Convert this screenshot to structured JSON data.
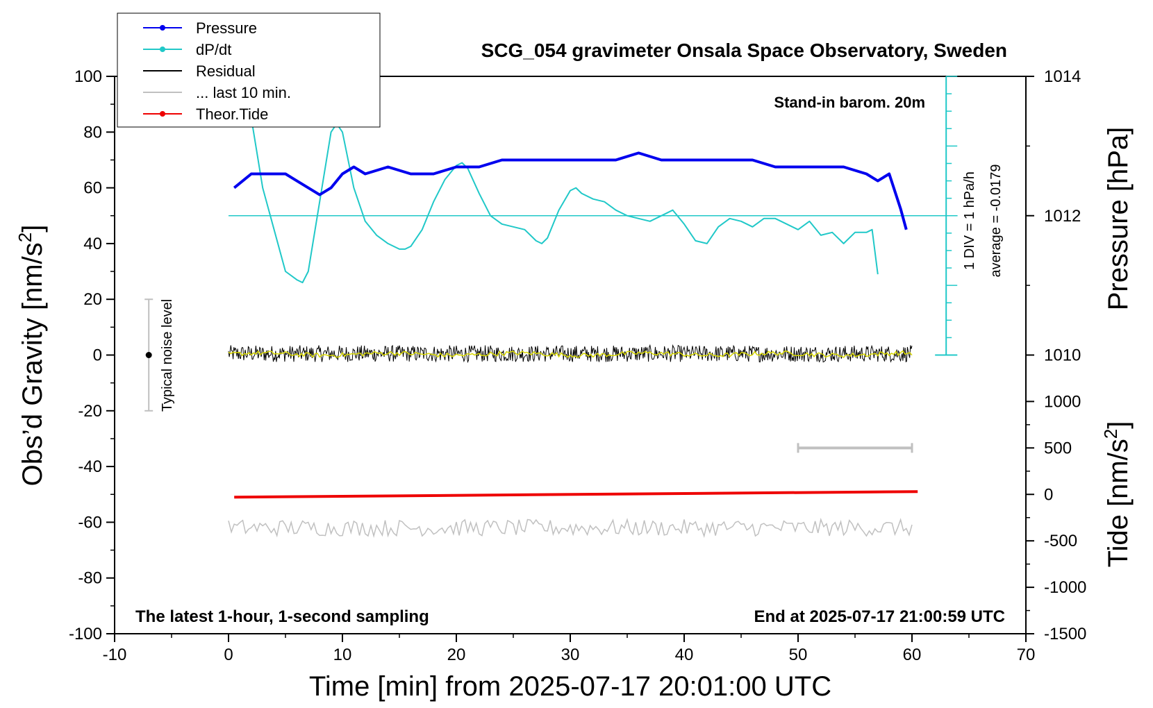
{
  "chart_data": {
    "type": "line",
    "title": "SCG_054 gravimeter Onsala Space Observatory, Sweden",
    "xlabel": "Time [min] from 2025-07-17 20:01:00 UTC",
    "ylabel_left": "Obs’d Gravity [nm/s",
    "ylabel_left_sup": "2",
    "ylabel_left_close": "]",
    "ylabel_right_pressure": "Pressure [hPa]",
    "ylabel_right_tide": "Tide [nm/s",
    "ylabel_right_tide_sup": "2",
    "ylabel_right_tide_close": "]",
    "xlim": [
      -10,
      70
    ],
    "ylim_left": [
      -100,
      100
    ],
    "x_ticks": [
      -10,
      0,
      10,
      20,
      30,
      40,
      50,
      60,
      70
    ],
    "x_tick_labels": [
      "-10",
      "0",
      "10",
      "20",
      "30",
      "40",
      "50",
      "60",
      "70"
    ],
    "y_left_ticks": [
      100,
      80,
      60,
      40,
      20,
      0,
      -20,
      -40,
      -60,
      -80,
      -100
    ],
    "y_left_tick_labels": [
      "100",
      "80",
      "60",
      "40",
      "20",
      "0",
      "-20",
      "-40",
      "-60",
      "-80",
      "-100"
    ],
    "pressure_axis": {
      "ticks": [
        1014,
        1012,
        1010
      ],
      "tick_labels": [
        "1014",
        "1012",
        "1010"
      ],
      "left_units_per_hPa": 25,
      "left_value_at_1012": 50
    },
    "tide_axis": {
      "ticks": [
        1000,
        500,
        0,
        -500,
        -1000,
        -1500
      ],
      "tick_labels": [
        "1000",
        "500",
        "0",
        "-500",
        "-1000",
        "-1500"
      ],
      "left_value_at_zero": -50,
      "left_units_per_500": 16.67
    },
    "annotations": {
      "stand_in": "Stand-in barom. 20m",
      "div_label": "1 DIV = 1 hPa/h",
      "average_label": "average = -0.0179",
      "noise_label": "Typical noise level",
      "bottom_left": "The latest 1-hour, 1-second sampling",
      "bottom_right": "End at 2025-07-17 21:00:59 UTC"
    },
    "legend": [
      {
        "label": "Pressure",
        "color": "#0000ee",
        "marker": true
      },
      {
        "label": "dP/dt",
        "color": "#20c8c8",
        "marker": true
      },
      {
        "label": "Residual",
        "color": "#000000",
        "marker": false
      },
      {
        "label": "... last 10 min.",
        "color": "#c0c0c0",
        "marker": false
      },
      {
        "label": "Theor.Tide",
        "color": "#ee0000",
        "marker": true
      }
    ],
    "noise_bar": {
      "x": -7,
      "low": -20,
      "high": 20,
      "center": 0
    },
    "dPdt_baseline": 50,
    "dPdt_scale_x": 63,
    "last10_bar": {
      "x_start": 50,
      "x_end": 60,
      "tide_value": 500
    },
    "series": [
      {
        "name": "Pressure",
        "color": "#0000ee",
        "x": [
          0.5,
          2,
          3,
          4,
          5,
          6,
          7,
          8,
          9,
          10,
          11,
          12,
          14,
          16,
          18,
          20,
          22,
          24,
          26,
          28,
          30,
          32,
          34,
          36,
          38,
          40,
          42,
          44,
          46,
          48,
          50,
          52,
          54,
          56,
          57,
          58,
          59,
          59.5
        ],
        "values": [
          1012.4,
          1012.6,
          1012.6,
          1012.6,
          1012.6,
          1012.5,
          1012.4,
          1012.3,
          1012.4,
          1012.6,
          1012.7,
          1012.6,
          1012.7,
          1012.6,
          1012.6,
          1012.7,
          1012.7,
          1012.8,
          1012.8,
          1012.8,
          1012.8,
          1012.8,
          1012.8,
          1012.9,
          1012.8,
          1012.8,
          1012.8,
          1012.8,
          1012.8,
          1012.7,
          1012.7,
          1012.7,
          1012.7,
          1012.6,
          1012.5,
          1012.6,
          1012.1,
          1011.8
        ]
      },
      {
        "name": "dP/dt",
        "color": "#20c8c8",
        "x": [
          2,
          3,
          4,
          5,
          6,
          6.5,
          7,
          8,
          9,
          9.5,
          10,
          11,
          12,
          13,
          14,
          15,
          15.5,
          16,
          17,
          18,
          19,
          20,
          20.5,
          21,
          22,
          23,
          24,
          25,
          26,
          27,
          27.5,
          28,
          29,
          30,
          30.5,
          31,
          32,
          33,
          34,
          35,
          36,
          37,
          38,
          39,
          40,
          41,
          42,
          43,
          44,
          45,
          46,
          47,
          48,
          49,
          50,
          51,
          52,
          53,
          54,
          55,
          56,
          56.5,
          57
        ],
        "values": [
          85,
          60,
          45,
          30,
          27,
          26,
          30,
          55,
          80,
          83,
          80,
          60,
          48,
          43,
          40,
          38,
          38,
          39,
          45,
          55,
          63,
          68,
          69,
          67,
          58,
          50,
          47,
          46,
          45,
          41,
          40,
          42,
          52,
          59,
          60,
          58,
          56,
          55,
          52,
          50,
          49,
          48,
          50,
          52,
          47,
          41,
          40,
          46,
          49,
          48,
          46,
          49,
          49,
          47,
          45,
          48,
          43,
          44,
          40,
          44,
          44,
          45,
          29
        ]
      },
      {
        "name": "Residual",
        "color": "#000000",
        "x_start": 0,
        "x_end": 60,
        "center": 0.5,
        "amplitude": 3
      },
      {
        "name": "Residual smoothed",
        "color": "#d8d800",
        "x_start": 0,
        "x_end": 60,
        "center": 0.3,
        "amplitude": 0.8
      },
      {
        "name": "... last 10 min.",
        "color": "#c0c0c0",
        "x_start": 0,
        "x_end": 60,
        "center": -62,
        "amplitude": 3
      },
      {
        "name": "Theor.Tide",
        "color": "#ee0000",
        "x": [
          0.5,
          60.5
        ],
        "values": [
          -51,
          -49
        ]
      }
    ]
  }
}
